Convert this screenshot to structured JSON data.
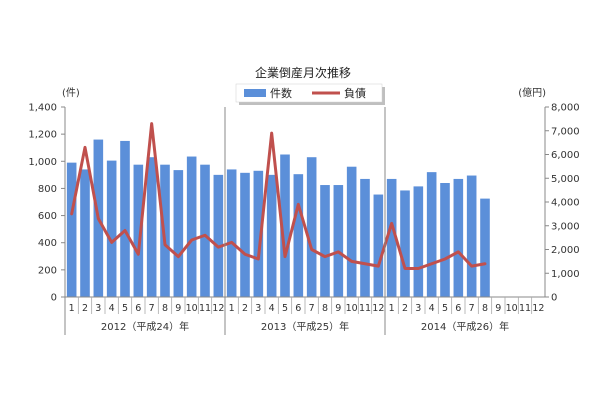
{
  "chart_data": {
    "type": "bar",
    "title": "企業倒産月次推移",
    "y_left_unit": "(件)",
    "y_right_unit": "(億円)",
    "y_left_lim": [
      0,
      1400
    ],
    "y_left_ticks": [
      "0",
      "200",
      "400",
      "600",
      "800",
      "1,000",
      "1,200",
      "1,400"
    ],
    "y_right_lim": [
      0,
      8000
    ],
    "y_right_ticks": [
      "0",
      "1,000",
      "2,000",
      "3,000",
      "4,000",
      "5,000",
      "6,000",
      "7,000",
      "8,000"
    ],
    "months": [
      "1",
      "2",
      "3",
      "4",
      "5",
      "6",
      "7",
      "8",
      "9",
      "10",
      "11",
      "12",
      "1",
      "2",
      "3",
      "4",
      "5",
      "6",
      "7",
      "8",
      "9",
      "10",
      "11",
      "12",
      "1",
      "2",
      "3",
      "4",
      "5",
      "6",
      "7",
      "8",
      "9",
      "10",
      "11",
      "12"
    ],
    "years": [
      {
        "label": "2012（平成24）年",
        "start": 0,
        "end": 11
      },
      {
        "label": "2013（平成25）年",
        "start": 12,
        "end": 23
      },
      {
        "label": "2014（平成26）年",
        "start": 24,
        "end": 35
      }
    ],
    "grid": false,
    "legend_position": "top-center",
    "series": [
      {
        "name": "件数",
        "kind": "bar",
        "axis": "left",
        "color": "#5b8fd9",
        "values": [
          990,
          940,
          1160,
          1005,
          1150,
          975,
          1030,
          975,
          935,
          1035,
          975,
          900,
          940,
          915,
          930,
          900,
          1050,
          905,
          1030,
          825,
          825,
          960,
          870,
          755,
          870,
          785,
          815,
          920,
          840,
          870,
          895,
          725,
          null,
          null,
          null,
          null
        ]
      },
      {
        "name": "負債",
        "kind": "line",
        "axis": "right",
        "color": "#c0504d",
        "values": [
          3500,
          6300,
          3300,
          2300,
          2800,
          1800,
          7300,
          2200,
          1700,
          2400,
          2600,
          2100,
          2300,
          1800,
          1600,
          6900,
          1700,
          3900,
          2000,
          1700,
          1900,
          1500,
          1400,
          1300,
          3100,
          1200,
          1200,
          1400,
          1600,
          1900,
          1300,
          1400,
          null,
          null,
          null,
          null
        ]
      }
    ]
  },
  "colors": {
    "bar": "#5b8fd9",
    "line": "#c0504d",
    "axis": "#888888"
  }
}
